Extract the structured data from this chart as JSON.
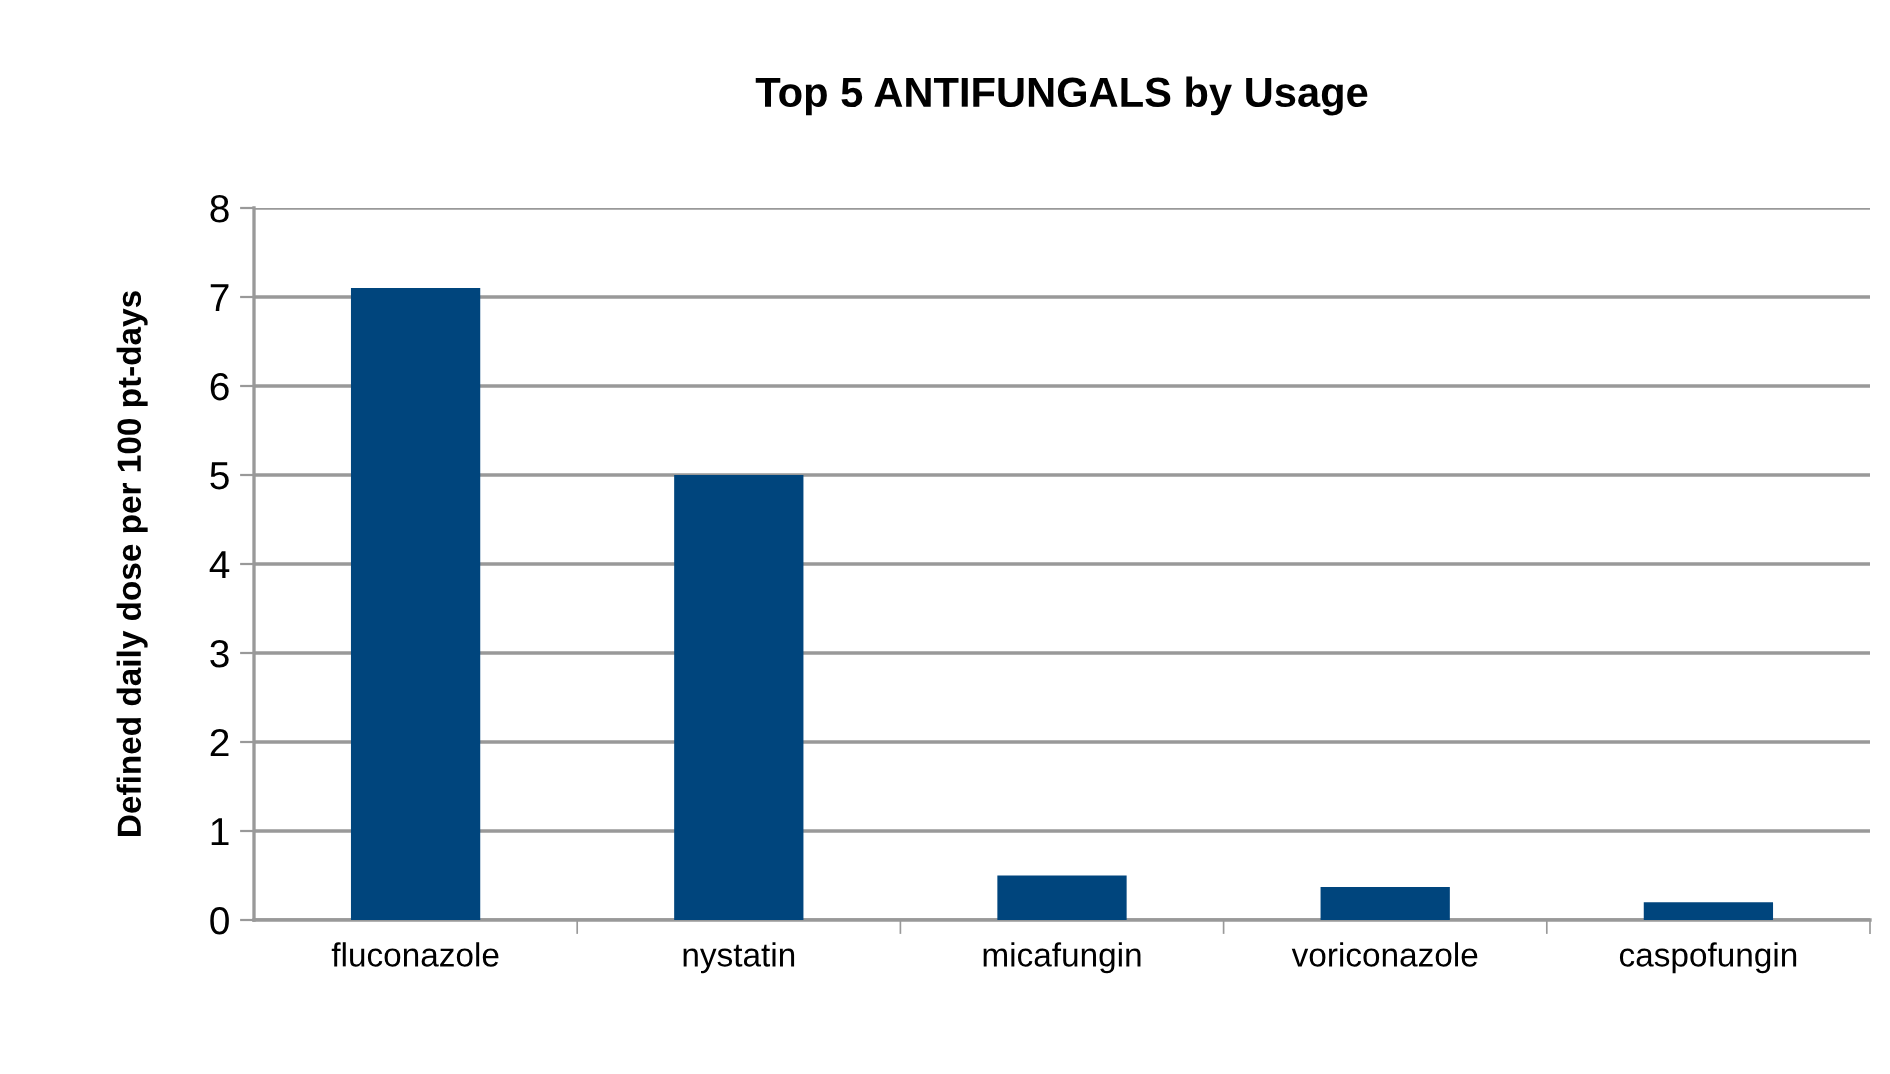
{
  "chart_data": {
    "type": "bar",
    "title": "Top 5 ANTIFUNGALS by Usage",
    "ylabel": "Defined daily dose per 100 pt-days",
    "categories": [
      "fluconazole",
      "nystatin",
      "micafungin",
      "voriconazole",
      "caspofungin"
    ],
    "values": [
      7.1,
      5.0,
      0.5,
      0.37,
      0.2
    ],
    "color": "#00457d",
    "ylim": [
      0,
      8
    ],
    "yticks": [
      0,
      1,
      2,
      3,
      4,
      5,
      6,
      7,
      8
    ],
    "grid": "y",
    "legend": false
  }
}
